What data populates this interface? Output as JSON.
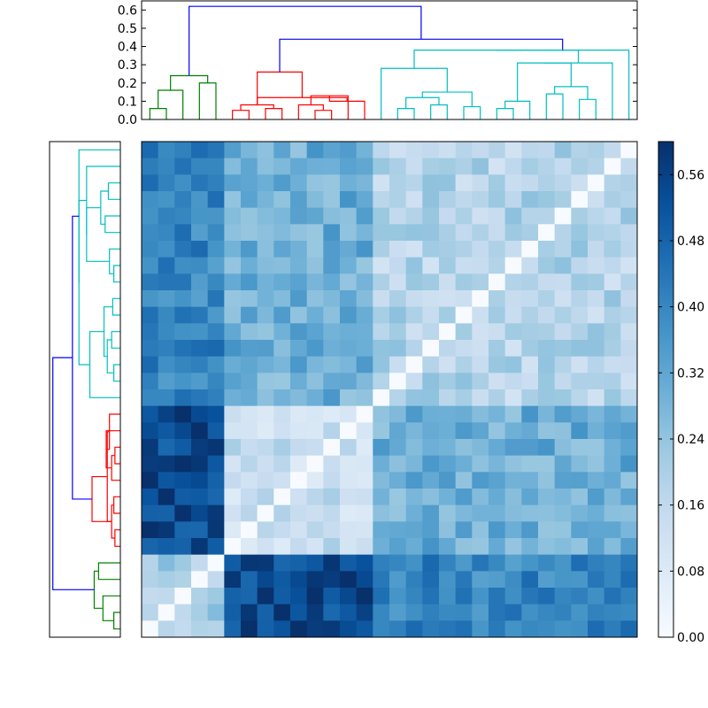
{
  "chart_data": {
    "type": "heatmap",
    "title": "",
    "xlabel": "",
    "ylabel": "",
    "n": 30,
    "colormap": "Blues",
    "colormap_stops": [
      "#f7fbff",
      "#deebf7",
      "#c6dbef",
      "#9ecae1",
      "#6baed6",
      "#4292c6",
      "#2171b5",
      "#08519c",
      "#08306b"
    ],
    "colorbar": {
      "range": [
        0,
        0.6
      ],
      "ticks": [
        0.0,
        0.08,
        0.16,
        0.24,
        0.32,
        0.4,
        0.48,
        0.56
      ],
      "tick_labels": [
        "0.00",
        "0.08",
        "0.16",
        "0.24",
        "0.32",
        "0.40",
        "0.48",
        "0.56"
      ]
    },
    "dendrogram_axis": {
      "ylim": [
        0,
        0.65
      ],
      "ticks": [
        0.0,
        0.1,
        0.2,
        0.3,
        0.4,
        0.5,
        0.6
      ],
      "tick_labels": [
        "0.0",
        "0.1",
        "0.2",
        "0.3",
        "0.4",
        "0.5",
        "0.6"
      ]
    },
    "dendrogram_colors": {
      "root": "#0000ff",
      "c1": "#008000",
      "c2": "#ff0000",
      "c3": "#00bfbf"
    },
    "clusters": [
      {
        "name": "green",
        "color": "c1",
        "start": 0,
        "size": 5
      },
      {
        "name": "red",
        "color": "c2",
        "start": 5,
        "size": 9
      },
      {
        "name": "cyan",
        "color": "c3",
        "start": 14,
        "size": 16
      }
    ],
    "within_values": [
      0.22,
      0.14,
      0.18
    ],
    "between_values": [
      [
        0,
        0.54,
        0.4
      ],
      [
        0.54,
        0,
        0.3
      ],
      [
        0.4,
        0.3,
        0
      ]
    ],
    "dendrogram": {
      "leaf_order": [
        0,
        1,
        2,
        3,
        4,
        5,
        6,
        7,
        8,
        9,
        10,
        11,
        12,
        13,
        14,
        15,
        16,
        17,
        18,
        19,
        20,
        21,
        22,
        23,
        24,
        25,
        26,
        27,
        28,
        29
      ],
      "merges": [
        {
          "a": 0,
          "b": 1,
          "h": 0.06,
          "c": "c1"
        },
        {
          "a": 30,
          "b": 2,
          "h": 0.16,
          "c": "c1"
        },
        {
          "a": 3,
          "b": 4,
          "h": 0.2,
          "c": "c1"
        },
        {
          "a": 31,
          "b": 32,
          "h": 0.24,
          "c": "c1"
        },
        {
          "a": 5,
          "b": 6,
          "h": 0.05,
          "c": "c2"
        },
        {
          "a": 7,
          "b": 8,
          "h": 0.06,
          "c": "c2"
        },
        {
          "a": 35,
          "b": 34,
          "h": 0.08,
          "c": "c2"
        },
        {
          "a": 10,
          "b": 11,
          "h": 0.05,
          "c": "c2"
        },
        {
          "a": 9,
          "b": 37,
          "h": 0.08,
          "c": "c2"
        },
        {
          "a": 38,
          "b": 12,
          "h": 0.13,
          "c": "c2"
        },
        {
          "a": 39,
          "b": 13,
          "h": 0.1,
          "c": "c2"
        },
        {
          "a": 40,
          "b": 36,
          "h": 0.12,
          "c": "c2"
        },
        {
          "a": 41,
          "b": 36,
          "h": 0.26,
          "c": "c2"
        },
        {
          "a": 15,
          "b": 16,
          "h": 0.06,
          "c": "c3"
        },
        {
          "a": 17,
          "b": 18,
          "h": 0.08,
          "c": "c3"
        },
        {
          "a": 43,
          "b": 44,
          "h": 0.12,
          "c": "c3"
        },
        {
          "a": 19,
          "b": 20,
          "h": 0.07,
          "c": "c3"
        },
        {
          "a": 45,
          "b": 46,
          "h": 0.15,
          "c": "c3"
        },
        {
          "a": 14,
          "b": 47,
          "h": 0.28,
          "c": "c3"
        },
        {
          "a": 21,
          "b": 22,
          "h": 0.06,
          "c": "c3"
        },
        {
          "a": 49,
          "b": 23,
          "h": 0.1,
          "c": "c3"
        },
        {
          "a": 24,
          "b": 25,
          "h": 0.14,
          "c": "c3"
        },
        {
          "a": 26,
          "b": 27,
          "h": 0.11,
          "c": "c3"
        },
        {
          "a": 51,
          "b": 52,
          "h": 0.18,
          "c": "c3"
        },
        {
          "a": 50,
          "b": 53,
          "h": 0.31,
          "c": "c3"
        },
        {
          "a": 54,
          "b": 28,
          "h": 0.31,
          "c": "c3"
        },
        {
          "a": 48,
          "b": 55,
          "h": 0.38,
          "c": "c3"
        },
        {
          "a": 56,
          "b": 29,
          "h": 0.38,
          "c": "c3"
        },
        {
          "a": 42,
          "b": 57,
          "h": 0.44,
          "c": "root"
        },
        {
          "a": 33,
          "b": 58,
          "h": 0.62,
          "c": "root"
        }
      ]
    }
  }
}
